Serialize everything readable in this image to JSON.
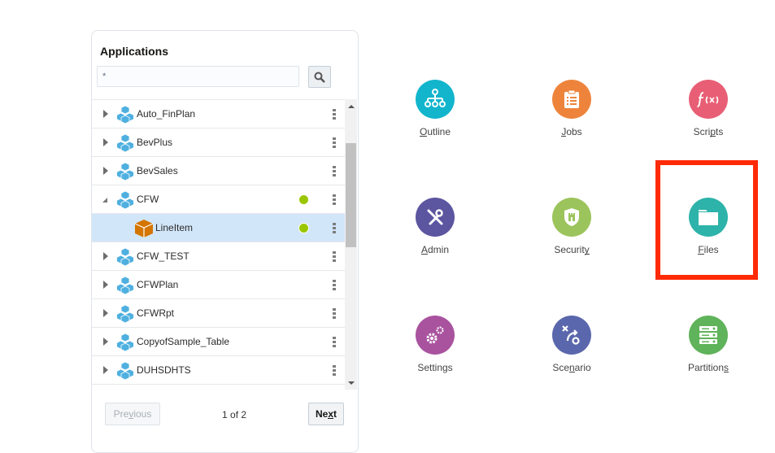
{
  "panel": {
    "title": "Applications",
    "search_value": "*",
    "search_icon": "magnifier-icon",
    "items": [
      {
        "name": "Auto_FinPlan",
        "expanded": false,
        "level": 0,
        "selected": false,
        "status": null
      },
      {
        "name": "BevPlus",
        "expanded": false,
        "level": 0,
        "selected": false,
        "status": null
      },
      {
        "name": "BevSales",
        "expanded": false,
        "level": 0,
        "selected": false,
        "status": null
      },
      {
        "name": "CFW",
        "expanded": true,
        "level": 0,
        "selected": false,
        "status": "running"
      },
      {
        "name": "LineItem",
        "expanded": false,
        "level": 1,
        "selected": true,
        "status": "running"
      },
      {
        "name": "CFW_TEST",
        "expanded": false,
        "level": 0,
        "selected": false,
        "status": null
      },
      {
        "name": "CFWPlan",
        "expanded": false,
        "level": 0,
        "selected": false,
        "status": null
      },
      {
        "name": "CFWRpt",
        "expanded": false,
        "level": 0,
        "selected": false,
        "status": null
      },
      {
        "name": "CopyofSample_Table",
        "expanded": false,
        "level": 0,
        "selected": false,
        "status": null
      },
      {
        "name": "DUHSDHTS",
        "expanded": false,
        "level": 0,
        "selected": false,
        "status": null
      },
      {
        "name": "",
        "expanded": false,
        "level": 0,
        "selected": false,
        "status": null
      }
    ],
    "pagination": {
      "previous": "Previous",
      "previous_key": 3,
      "next": "Next",
      "next_key": 2,
      "current": "1",
      "of_text": " of 2"
    }
  },
  "colors": {
    "app_icon": "#4fb0e0",
    "cube_icon": "#d47500",
    "status_running": "#9ac600",
    "highlight": "#ff2a06"
  },
  "tiles": [
    {
      "label": "Outline",
      "key": 0,
      "icon": "outline-hierarchy-icon",
      "color": "#12b5cc"
    },
    {
      "label": "Jobs",
      "key": 0,
      "icon": "clipboard-list-icon",
      "color": "#ee843c"
    },
    {
      "label": "Scripts",
      "key": 4,
      "icon": "function-icon",
      "color": "#e85f75"
    },
    {
      "label": "Admin",
      "key": 0,
      "icon": "tools-icon",
      "color": "#5c55a0"
    },
    {
      "label": "Security",
      "key": 7,
      "icon": "shield-icon",
      "color": "#9cc45c"
    },
    {
      "label": "Files",
      "key": 0,
      "icon": "folder-icon",
      "color": "#2db3aa"
    },
    {
      "label": "Settings",
      "key": -1,
      "icon": "gears-icon",
      "color": "#a9539f"
    },
    {
      "label": "Scenario",
      "key": 3,
      "icon": "scenario-icon",
      "color": "#5b67ac"
    },
    {
      "label": "Partitions",
      "key": 9,
      "icon": "server-rack-icon",
      "color": "#5fb35a"
    }
  ]
}
